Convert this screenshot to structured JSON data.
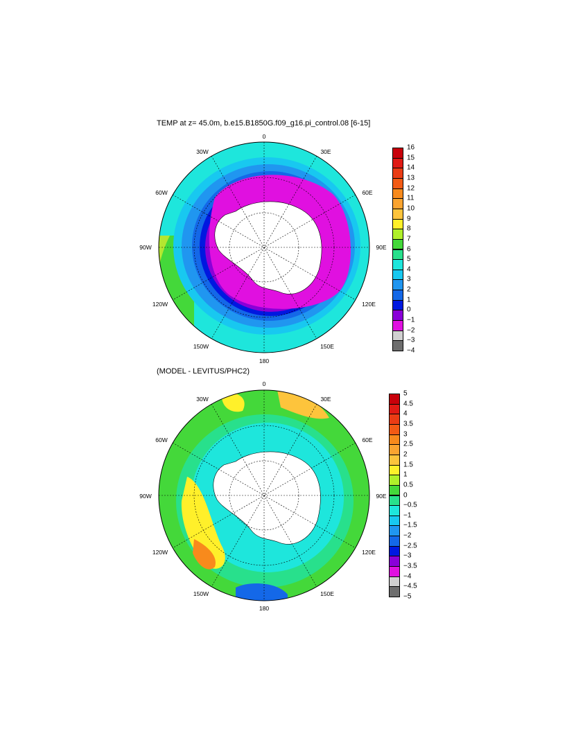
{
  "top_panel": {
    "title": "TEMP at z=  45.0m, b.e15.B1850G.f09_g16.pi_control.08 [6-15]",
    "lon_labels": [
      "0",
      "30E",
      "60E",
      "90E",
      "120E",
      "150E",
      "180",
      "150W",
      "120W",
      "90W",
      "60W",
      "30W"
    ],
    "colorbar_ticks": [
      "16",
      "15",
      "14",
      "13",
      "12",
      "11",
      "10",
      "9",
      "8",
      "7",
      "6",
      "5",
      "4",
      "3",
      "2",
      "1",
      "0",
      "−1",
      "−2",
      "−3",
      "−4"
    ],
    "colorbar_colors": [
      "#c8000a",
      "#e01a14",
      "#ea3c14",
      "#f25a14",
      "#f88a1c",
      "#fba430",
      "#fdc43c",
      "#fff02a",
      "#b0f02a",
      "#44d83a",
      "#28e08c",
      "#1ee6dc",
      "#18c8f0",
      "#2096f0",
      "#1468e8",
      "#0018e0",
      "#8a00d8",
      "#e010e0",
      "#d0d0d0",
      "#6e6e6e"
    ]
  },
  "bottom_panel": {
    "title": "(MODEL - LEVITUS/PHC2)",
    "lon_labels": [
      "0",
      "30E",
      "60E",
      "90E",
      "120E",
      "150E",
      "180",
      "150W",
      "120W",
      "90W",
      "60W",
      "30W"
    ],
    "colorbar_ticks": [
      "5",
      "4.5",
      "4",
      "3.5",
      "3",
      "2.5",
      "2",
      "1.5",
      "1",
      "0.5",
      "0",
      "−0.5",
      "−1",
      "−1.5",
      "−2",
      "−2.5",
      "−3",
      "−3.5",
      "−4",
      "−4.5",
      "−5"
    ],
    "colorbar_colors": [
      "#c8000a",
      "#e01a14",
      "#ea3c14",
      "#f25a14",
      "#f88a1c",
      "#fba430",
      "#fdc43c",
      "#fff02a",
      "#b0f02a",
      "#44d83a",
      "#28e08c",
      "#1ee6dc",
      "#18c8f0",
      "#2096f0",
      "#1468e8",
      "#0018e0",
      "#8a00d8",
      "#e010e0",
      "#d0d0d0",
      "#6e6e6e"
    ]
  }
}
